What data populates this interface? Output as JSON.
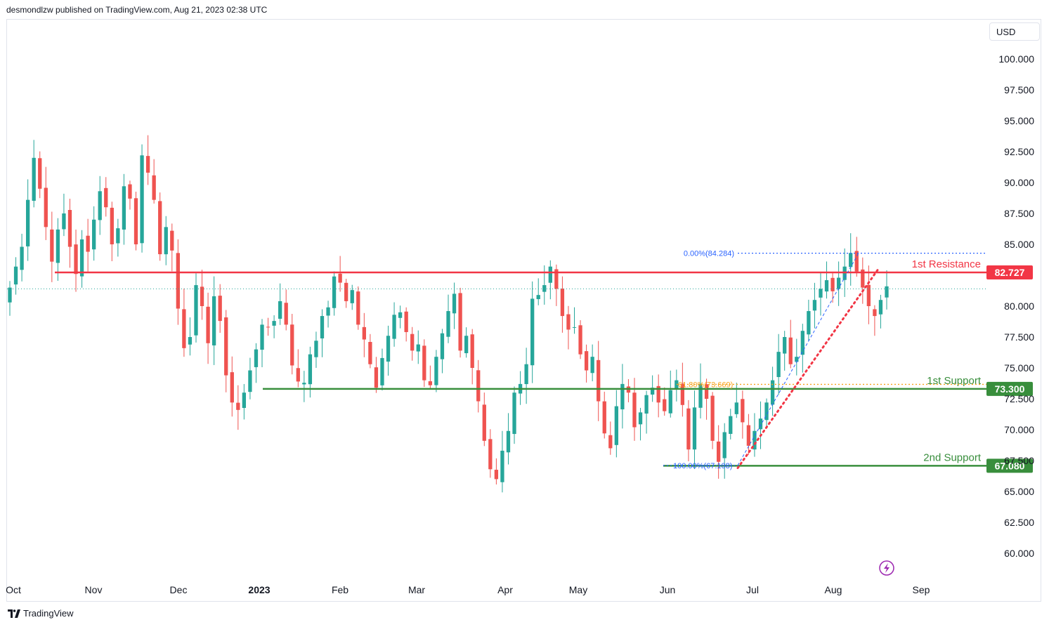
{
  "header": {
    "publisher": "desmondlzw published on TradingView.com, Aug 21, 2023 02:38 UTC"
  },
  "currency_button": {
    "label": "USD"
  },
  "footer": {
    "brand": "TradingView"
  },
  "colors": {
    "up": "#26a69a",
    "down": "#ef5350",
    "resistance": "#f23645",
    "support": "#388e3c",
    "fib": "#2962ff",
    "fib618": "#f7a21b"
  },
  "icons": {
    "alert": "lightning-icon",
    "logo": "tradingview-logo-icon"
  },
  "chart_data": {
    "type": "candlestick",
    "ylim": [
      58.6,
      102.7
    ],
    "y_ticks": [
      "100.000",
      "97.500",
      "95.000",
      "92.500",
      "90.000",
      "87.500",
      "85.000",
      "80.000",
      "77.500",
      "75.000",
      "72.500",
      "70.000",
      "67.500",
      "65.000",
      "62.500",
      "60.000"
    ],
    "x_ticks": [
      {
        "label": "Oct",
        "bold": false
      },
      {
        "label": "Nov",
        "bold": false
      },
      {
        "label": "Dec",
        "bold": false
      },
      {
        "label": "2023",
        "bold": true
      },
      {
        "label": "Feb",
        "bold": false
      },
      {
        "label": "Mar",
        "bold": false
      },
      {
        "label": "Apr",
        "bold": false
      },
      {
        "label": "May",
        "bold": false
      },
      {
        "label": "Jun",
        "bold": false
      },
      {
        "label": "Jul",
        "bold": false
      },
      {
        "label": "Aug",
        "bold": false
      },
      {
        "label": "Sep",
        "bold": false
      }
    ],
    "levels": [
      {
        "name": "1st Resistance",
        "value": 82.727,
        "label": "82.727",
        "color": "#f23645"
      },
      {
        "name": "1st Support",
        "value": 73.3,
        "label": "73.300",
        "color": "#388e3c"
      },
      {
        "name": "2nd Support",
        "value": 67.08,
        "label": "67.080",
        "color": "#388e3c"
      }
    ],
    "fibonacci": [
      {
        "label": "0.00%(84.284)",
        "value": 84.284,
        "color": "#2962ff"
      },
      {
        "label": "61.80%(73.669)",
        "value": 73.669,
        "color": "#f7a21b"
      },
      {
        "label": "100.00%(67.108)",
        "value": 67.108,
        "color": "#2962ff"
      }
    ],
    "last_price": 81.4,
    "trendline": {
      "from": [
        66.9
      ],
      "to": [
        83.0
      ]
    },
    "ohlc_anchors": [
      81.5,
      83.2,
      84.8,
      88.6,
      92.0,
      89.5,
      86.4,
      83.6,
      86.2,
      87.5,
      84.8,
      82.6,
      85.4,
      84.4,
      87.0,
      89.3,
      88.0,
      85.0,
      86.3,
      89.7,
      88.7,
      85.0,
      92.2,
      90.8,
      88.6,
      84.2,
      86.4,
      84.5,
      79.8,
      76.6,
      77.5,
      81.7,
      80.0,
      77.0,
      80.8,
      78.8,
      74.4,
      72.2,
      71.6,
      73.0,
      74.8,
      76.5,
      78.5,
      78.3,
      78.8,
      80.4,
      78.5,
      75.2,
      73.9,
      73.8,
      76.1,
      77.2,
      79.2,
      79.9,
      82.4,
      81.9,
      80.4,
      81.3,
      78.5,
      77.3,
      75.3,
      73.4,
      75.8,
      77.6,
      79.3,
      79.5,
      77.9,
      76.4,
      76.9,
      74.0,
      73.6,
      75.9,
      77.8,
      79.6,
      81.0,
      76.4,
      77.6,
      75.0,
      72.3,
      69.1,
      66.8,
      66.0,
      68.3,
      69.9,
      73.0,
      73.7,
      75.3,
      80.6,
      80.9,
      81.7,
      83.2,
      81.4,
      79.2,
      78.1,
      78.3,
      76.1,
      74.8,
      75.9,
      72.3,
      69.7,
      68.5,
      71.9,
      73.7,
      73.0,
      70.2,
      71.4,
      72.8,
      73.4,
      72.2,
      71.5,
      73.2,
      74.0,
      72.0,
      68.4,
      71.8,
      73.7,
      72.5,
      69.1,
      67.4,
      69.8,
      71.1,
      72.2,
      70.6,
      68.7,
      69.9,
      70.9,
      72.2,
      74.0,
      76.3,
      77.5,
      75.3,
      75.9,
      78.0,
      79.6,
      80.5,
      81.4,
      82.1,
      81.2,
      82.3,
      83.2,
      84.3,
      82.8,
      81.5,
      80.0,
      79.2,
      80.5,
      81.6
    ]
  }
}
